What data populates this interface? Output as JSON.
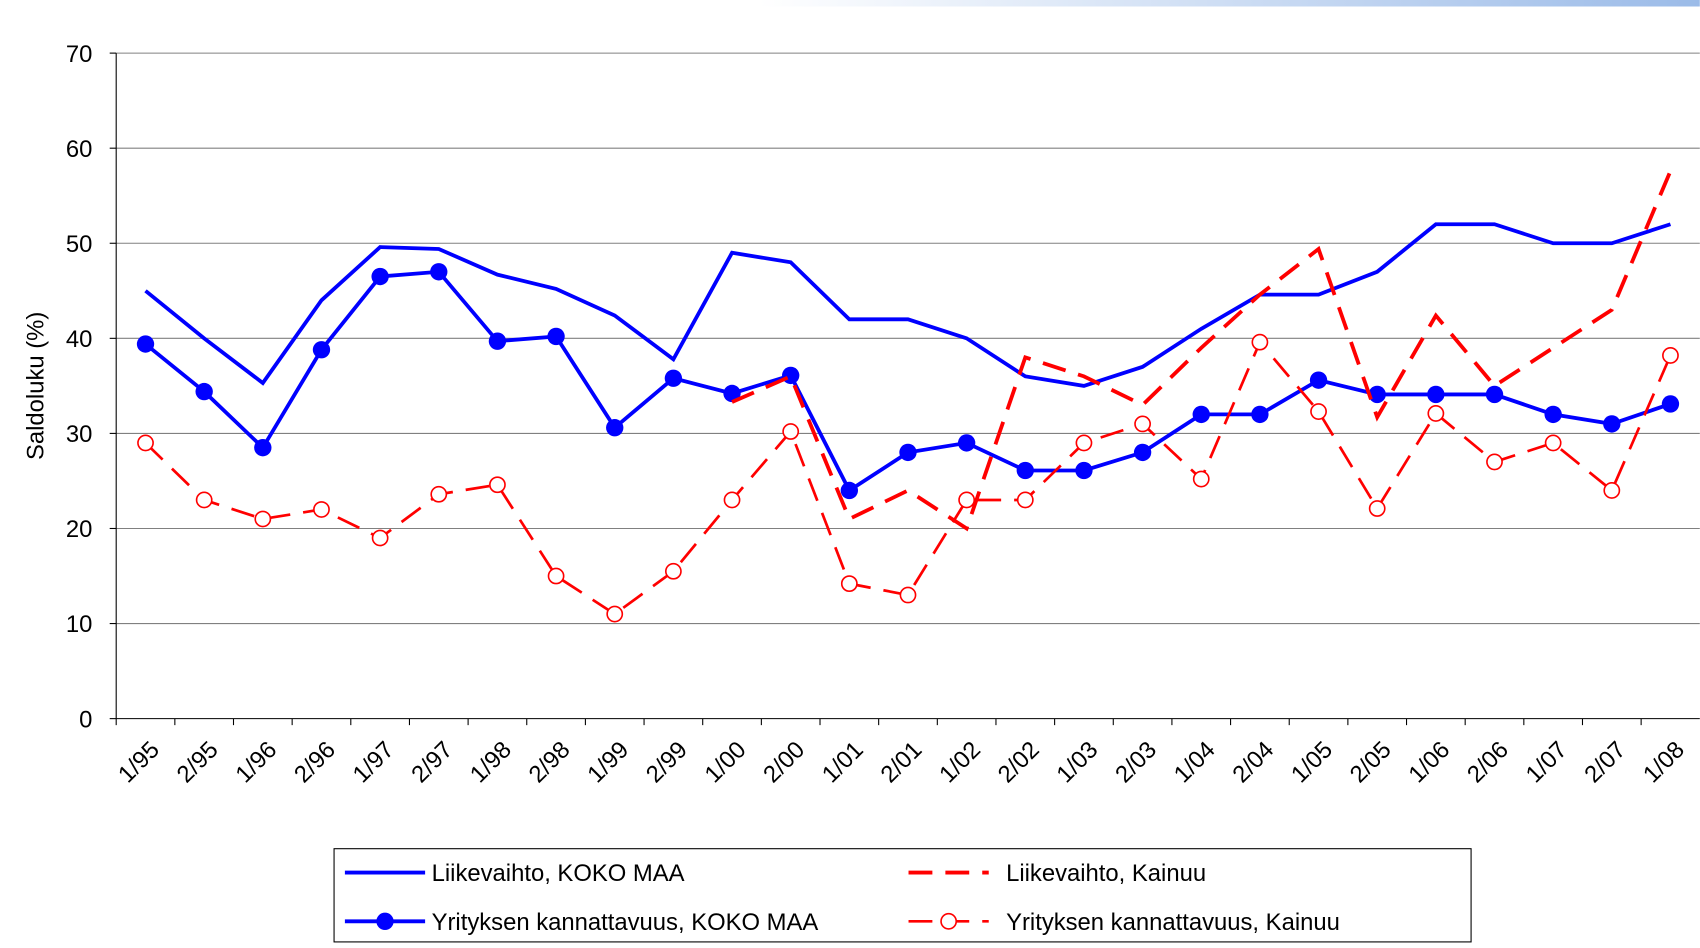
{
  "chart_data": {
    "type": "line",
    "y_label": "Saldoluku (%)",
    "categories": [
      "1/95",
      "2/95",
      "1/96",
      "2/96",
      "1/97",
      "2/97",
      "1/98",
      "2/98",
      "1/99",
      "2/99",
      "1/00",
      "2/00",
      "1/01",
      "2/01",
      "1/02",
      "2/02",
      "1/03",
      "2/03",
      "1/04",
      "2/04",
      "1/05",
      "2/05",
      "1/06",
      "2/06",
      "1/07",
      "2/07",
      "1/08"
    ],
    "ylim": [
      0,
      70
    ],
    "yticks": [
      0,
      10,
      20,
      30,
      40,
      50,
      60,
      70
    ],
    "grid": true,
    "series": [
      {
        "name": "Liikevaihto, KOKO MAA",
        "color": "#0000ff",
        "dashed": false,
        "marker": "none",
        "values": [
          45,
          40,
          35.3,
          44,
          49.6,
          49.4,
          46.7,
          45.2,
          42.4,
          37.8,
          49,
          48,
          42,
          42,
          40,
          36,
          35,
          37,
          41,
          44.6,
          44.6,
          47,
          52,
          52,
          50,
          50,
          52
        ]
      },
      {
        "name": "Yrityksen kannattavuus, KOKO MAA",
        "color": "#0000ff",
        "dashed": false,
        "marker": "filled",
        "values": [
          39.4,
          34.4,
          28.5,
          38.8,
          46.5,
          47,
          39.7,
          40.2,
          30.6,
          35.8,
          34.2,
          36.1,
          24,
          28,
          29,
          26.1,
          26.1,
          28,
          32,
          32,
          35.6,
          34.1,
          34.1,
          34.1,
          32,
          31,
          33.1
        ]
      },
      {
        "name": "Liikevaihto, Kainuu",
        "color": "#ff0000",
        "dashed": true,
        "marker": "none",
        "values": [
          null,
          null,
          null,
          null,
          null,
          null,
          null,
          null,
          null,
          null,
          33.3,
          36,
          21,
          24,
          20,
          38,
          36,
          33,
          39,
          44.6,
          49.4,
          31.7,
          42.4,
          35,
          39,
          43,
          57.6
        ]
      },
      {
        "name": "Yrityksen kannattavuus, Kainuu",
        "color": "#ff0000",
        "dashed": true,
        "marker": "open",
        "values": [
          29,
          23,
          21,
          22,
          19,
          23.6,
          24.6,
          15,
          11,
          15.5,
          23,
          30.2,
          14.2,
          13,
          23,
          23,
          29,
          31,
          25.2,
          39.6,
          32.3,
          22.1,
          32.1,
          27,
          29,
          24,
          38.2
        ]
      }
    ]
  }
}
